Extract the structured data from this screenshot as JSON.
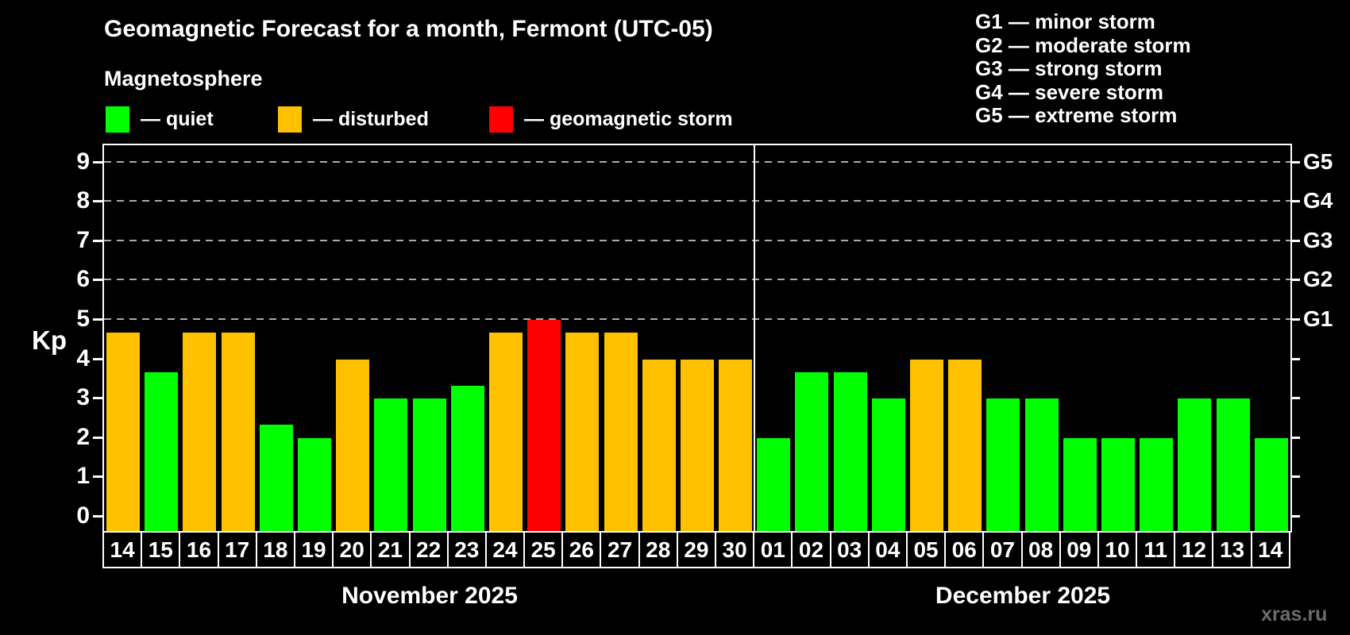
{
  "header": {
    "title": "Geomagnetic Forecast for a month, Fermont (UTC-05)",
    "subtitle": "Magnetosphere"
  },
  "legend": {
    "items": [
      {
        "label": "— quiet",
        "status": "quiet",
        "color": "#00ff00"
      },
      {
        "label": "— disturbed",
        "status": "disturbed",
        "color": "#ffc000"
      },
      {
        "label": "— geomagnetic storm",
        "status": "storm",
        "color": "#ff0000"
      }
    ]
  },
  "g_legend": {
    "items": [
      "G1 — minor storm",
      "G2 — moderate storm",
      "G3 — strong storm",
      "G4 — severe storm",
      "G5 — extreme storm"
    ]
  },
  "colors": {
    "quiet": "#00ff00",
    "disturbed": "#ffc000",
    "storm": "#ff0000",
    "gridline": "#ababab",
    "frame": "#ffffff",
    "background": "#000000"
  },
  "watermark": "xras.ru",
  "chart_data": {
    "type": "bar",
    "title": "Geomagnetic Forecast for a month, Fermont (UTC-05)",
    "subtitle": "Magnetosphere",
    "ylabel": "Kp",
    "ylim": [
      0,
      9
    ],
    "yticks": [
      0,
      1,
      2,
      3,
      4,
      5,
      6,
      7,
      8,
      9
    ],
    "gridlines": [
      5,
      6,
      7,
      8,
      9
    ],
    "grid_style": "dashed, G-storm levels only",
    "legend_position": "top-left",
    "right_axis_labels": [
      {
        "kp": 5,
        "label": "G1"
      },
      {
        "kp": 6,
        "label": "G2"
      },
      {
        "kp": 7,
        "label": "G3"
      },
      {
        "kp": 8,
        "label": "G4"
      },
      {
        "kp": 9,
        "label": "G5"
      }
    ],
    "months": [
      {
        "label": "November 2025",
        "days": [
          {
            "day": "14",
            "kp": 4.67,
            "status": "disturbed"
          },
          {
            "day": "15",
            "kp": 3.67,
            "status": "quiet"
          },
          {
            "day": "16",
            "kp": 4.67,
            "status": "disturbed"
          },
          {
            "day": "17",
            "kp": 4.67,
            "status": "disturbed"
          },
          {
            "day": "18",
            "kp": 2.33,
            "status": "quiet"
          },
          {
            "day": "19",
            "kp": 2.0,
            "status": "quiet"
          },
          {
            "day": "20",
            "kp": 4.0,
            "status": "disturbed"
          },
          {
            "day": "21",
            "kp": 3.0,
            "status": "quiet"
          },
          {
            "day": "22",
            "kp": 3.0,
            "status": "quiet"
          },
          {
            "day": "23",
            "kp": 3.33,
            "status": "quiet"
          },
          {
            "day": "24",
            "kp": 4.67,
            "status": "disturbed"
          },
          {
            "day": "25",
            "kp": 5.0,
            "status": "storm"
          },
          {
            "day": "26",
            "kp": 4.67,
            "status": "disturbed"
          },
          {
            "day": "27",
            "kp": 4.67,
            "status": "disturbed"
          },
          {
            "day": "28",
            "kp": 4.0,
            "status": "disturbed"
          },
          {
            "day": "29",
            "kp": 4.0,
            "status": "disturbed"
          },
          {
            "day": "30",
            "kp": 4.0,
            "status": "disturbed"
          }
        ]
      },
      {
        "label": "December 2025",
        "days": [
          {
            "day": "01",
            "kp": 2.0,
            "status": "quiet"
          },
          {
            "day": "02",
            "kp": 3.67,
            "status": "quiet"
          },
          {
            "day": "03",
            "kp": 3.67,
            "status": "quiet"
          },
          {
            "day": "04",
            "kp": 3.0,
            "status": "quiet"
          },
          {
            "day": "05",
            "kp": 4.0,
            "status": "disturbed"
          },
          {
            "day": "06",
            "kp": 4.0,
            "status": "disturbed"
          },
          {
            "day": "07",
            "kp": 3.0,
            "status": "quiet"
          },
          {
            "day": "08",
            "kp": 3.0,
            "status": "quiet"
          },
          {
            "day": "09",
            "kp": 2.0,
            "status": "quiet"
          },
          {
            "day": "10",
            "kp": 2.0,
            "status": "quiet"
          },
          {
            "day": "11",
            "kp": 2.0,
            "status": "quiet"
          },
          {
            "day": "12",
            "kp": 3.0,
            "status": "quiet"
          },
          {
            "day": "13",
            "kp": 3.0,
            "status": "quiet"
          },
          {
            "day": "14",
            "kp": 2.0,
            "status": "quiet"
          }
        ]
      }
    ]
  }
}
